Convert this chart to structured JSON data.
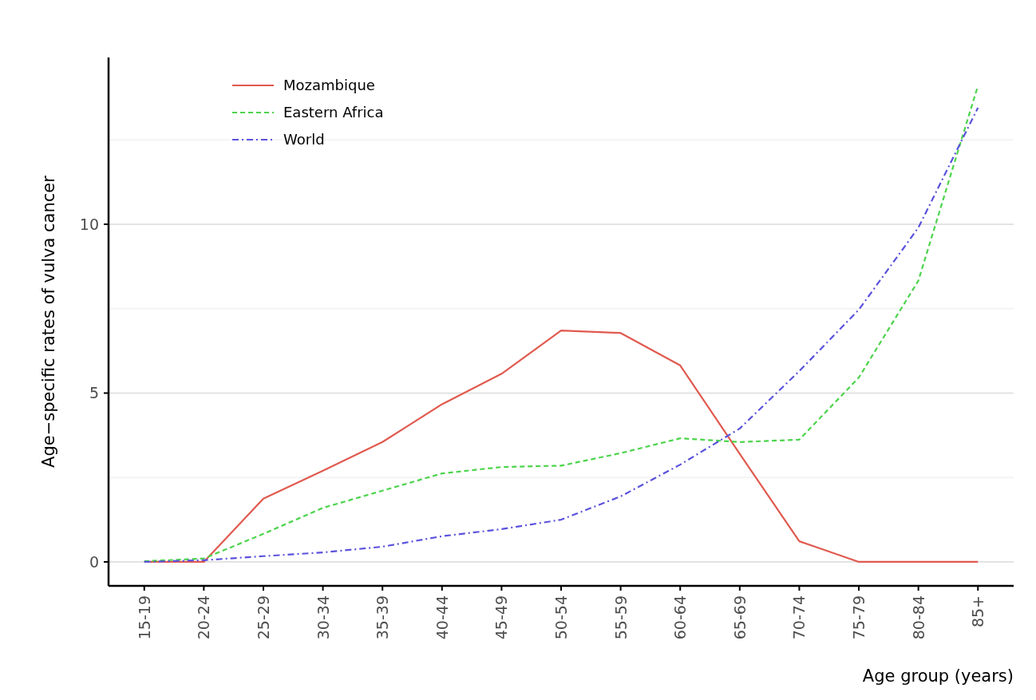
{
  "chart_data": {
    "type": "line",
    "xlabel": "Age group (years)",
    "ylabel": "Age−specific rates of vulva cancer",
    "categories": [
      "15-19",
      "20-24",
      "25-29",
      "30-34",
      "35-39",
      "40-44",
      "45-49",
      "50-54",
      "55-59",
      "60-64",
      "65-69",
      "70-74",
      "75-79",
      "80-84",
      "85+"
    ],
    "series": [
      {
        "name": "Mozambique",
        "color": "#e05a4f",
        "line_style": "solid",
        "values": [
          0,
          0,
          1.87,
          2.7,
          3.55,
          4.67,
          5.57,
          6.85,
          6.78,
          5.82,
          3.2,
          0.61,
          0,
          0,
          0
        ]
      },
      {
        "name": "Eastern Africa",
        "color": "#4cd44c",
        "line_style": "dashed",
        "values": [
          0.02,
          0.1,
          0.83,
          1.6,
          2.11,
          2.62,
          2.81,
          2.85,
          3.22,
          3.66,
          3.55,
          3.62,
          5.46,
          8.33,
          14.1
        ]
      },
      {
        "name": "World",
        "color": "#5a52dc",
        "line_style": "dashdot",
        "values": [
          0,
          0.05,
          0.17,
          0.28,
          0.45,
          0.76,
          0.97,
          1.25,
          1.94,
          2.88,
          3.95,
          5.65,
          7.47,
          9.9,
          13.45
        ]
      }
    ],
    "ylim": [
      -0.71,
      14.94
    ],
    "yticks": [
      0,
      5,
      10
    ],
    "grid": "y",
    "legend": "top left",
    "marker": "none"
  }
}
